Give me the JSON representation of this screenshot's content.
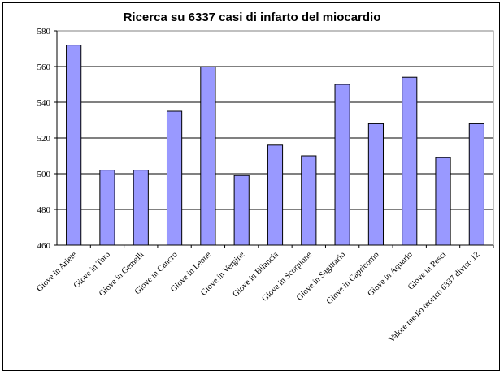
{
  "chart_data": {
    "type": "bar",
    "title": "Ricerca su 6337 casi di infarto del miocardio",
    "xlabel": "",
    "ylabel": "",
    "categories": [
      "Giove in Ariete",
      "Giove in Toro",
      "Giove in Gemelli",
      "Giove in Cancro",
      "Giove in Leone",
      "Giove in Vergine",
      "Giove in Bilancia",
      "Giove in Scorpione",
      "Giove in Sagittario",
      "Giove in Capricorno",
      "Giove in Aquario",
      "Giove in Pesci",
      "Valore medio teorico 6337 diviso 12"
    ],
    "values": [
      572,
      502,
      502,
      535,
      560,
      499,
      516,
      510,
      550,
      528,
      554,
      509,
      528
    ],
    "ylim": [
      460,
      580
    ],
    "yticks": [
      460,
      480,
      500,
      520,
      540,
      560,
      580
    ],
    "grid": true,
    "legend": "none",
    "colors": {
      "bar_fill": "#9999ff",
      "bar_stroke": "#000000",
      "plot_background": "#ffffff",
      "gridline": "#000000"
    }
  }
}
